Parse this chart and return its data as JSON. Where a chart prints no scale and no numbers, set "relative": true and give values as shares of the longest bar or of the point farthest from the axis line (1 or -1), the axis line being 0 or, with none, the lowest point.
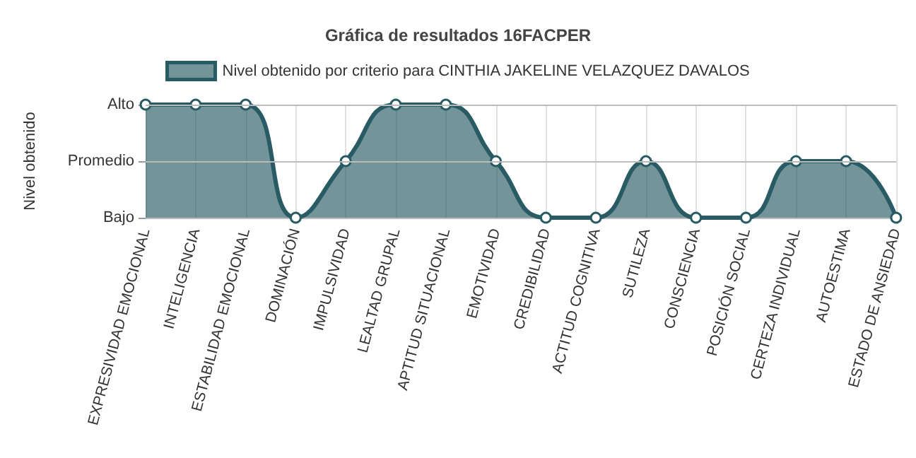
{
  "chart_data": {
    "type": "area",
    "title": "Gráfica de resultados 16FACPER",
    "ylabel": "Nivel obtenido",
    "relative": true,
    "categories": [
      "EXPRESIVIDAD EMOCIONAL",
      "INTELIGENCIA",
      "ESTABILIDAD EMOCIONAL",
      "DOMINACIÓN",
      "IMPULSIVIDAD",
      "LEALTAD GRUPAL",
      "APTITUD SITUACIONAL",
      "EMOTIVIDAD",
      "CREDIBILIDAD",
      "ACTITUD COGNITIVA",
      "SUTILEZA",
      "CONSCIENCIA",
      "POSICIÓN SOCIAL",
      "CERTEZA INDIVIDUAL",
      "AUTOESTIMA",
      "ESTADO DE ANSIEDAD"
    ],
    "y_categories": [
      "Alto",
      "Promedio",
      "Bajo"
    ],
    "series": [
      {
        "name": "Nivel obtenido por criterio para CINTHIA JAKELINE VELAZQUEZ DAVALOS",
        "color": "#285b63",
        "values": [
          1,
          1,
          1,
          0,
          0.5,
          1,
          1,
          0.5,
          0,
          0,
          0.5,
          0,
          0,
          0.5,
          0.5,
          0
        ]
      }
    ],
    "ref_lines": [
      {
        "axis": "y",
        "value": 1,
        "color": "#bbbbbb"
      },
      {
        "axis": "y",
        "value": 0.5,
        "color": "#bbbbbb"
      }
    ],
    "grid": "x",
    "legend": "top",
    "marker": "circle",
    "line_style": "solid"
  }
}
